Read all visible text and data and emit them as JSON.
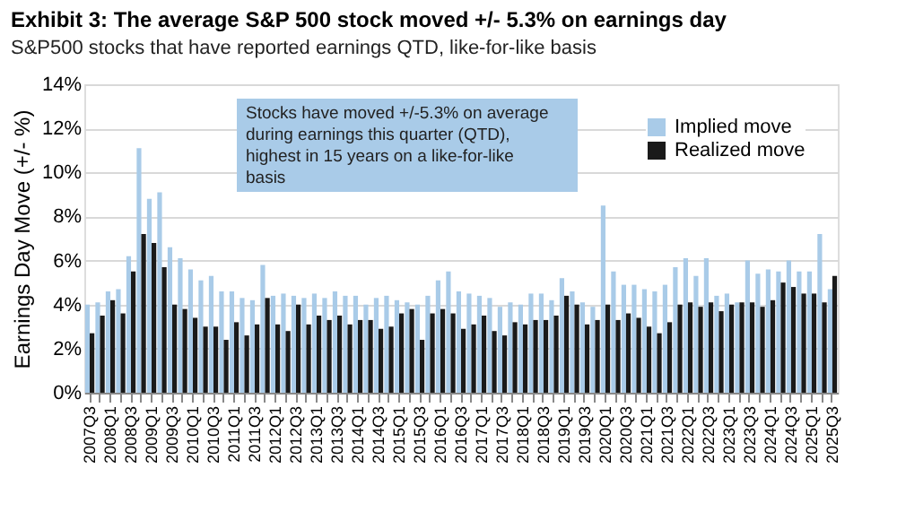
{
  "chart_data": {
    "type": "bar",
    "title": "Exhibit 3: The average S&P 500 stock moved +/- 5.3% on earnings day",
    "subtitle": "S&P500 stocks that have reported earnings QTD, like-for-like basis",
    "ylabel": "Earnings Day Move (+/- %)",
    "categories": [
      "2007Q3",
      null,
      "2008Q1",
      null,
      "2008Q3",
      null,
      "2009Q1",
      null,
      "2009Q3",
      null,
      "2010Q1",
      null,
      "2010Q3",
      null,
      "2011Q1",
      null,
      "2011Q3",
      null,
      "2012Q1",
      null,
      "2012Q3",
      null,
      "2013Q1",
      null,
      "2013Q3",
      null,
      "2014Q1",
      null,
      "2014Q3",
      null,
      "2015Q1",
      null,
      "2015Q3",
      null,
      "2016Q1",
      null,
      "2016Q3",
      null,
      "2017Q1",
      null,
      "2017Q3",
      null,
      "2018Q1",
      null,
      "2018Q3",
      null,
      "2019Q1",
      null,
      "2019Q3",
      null,
      "2020Q1",
      null,
      "2020Q3",
      null,
      "2021Q1",
      null,
      "2021Q3",
      null,
      "2022Q1",
      null,
      "2022Q3",
      null,
      "2023Q1",
      null,
      "2023Q3",
      null,
      "2024Q1",
      null,
      "2024Q3",
      null,
      "2025Q1",
      null,
      "2025Q3"
    ],
    "series": [
      {
        "name": "Implied move",
        "color": "#a9cbe8",
        "values": [
          4.0,
          4.1,
          4.6,
          4.7,
          6.2,
          11.1,
          8.8,
          9.1,
          6.6,
          6.1,
          5.6,
          5.1,
          5.3,
          4.6,
          4.6,
          4.3,
          4.2,
          5.8,
          4.4,
          4.5,
          4.4,
          4.3,
          4.5,
          4.3,
          4.6,
          4.4,
          4.4,
          4.0,
          4.3,
          4.4,
          4.2,
          4.1,
          4.0,
          4.4,
          5.1,
          5.5,
          4.6,
          4.5,
          4.4,
          4.3,
          3.9,
          4.1,
          4.0,
          4.5,
          4.5,
          4.2,
          5.2,
          4.6,
          4.1,
          3.9,
          8.5,
          5.5,
          4.9,
          4.9,
          4.7,
          4.6,
          4.9,
          5.7,
          6.1,
          5.3,
          6.1,
          4.4,
          4.5,
          4.1,
          6.0,
          5.4,
          5.6,
          5.5,
          6.0,
          5.5,
          5.5,
          7.2,
          4.7
        ]
      },
      {
        "name": "Realized move",
        "color": "#1a1a1a",
        "values": [
          2.7,
          3.5,
          4.2,
          3.6,
          5.5,
          7.2,
          6.8,
          5.7,
          4.0,
          3.8,
          3.4,
          3.0,
          3.0,
          2.4,
          3.2,
          2.6,
          3.1,
          4.3,
          3.1,
          2.8,
          4.0,
          3.1,
          3.5,
          3.3,
          3.5,
          3.1,
          3.3,
          3.3,
          2.9,
          3.0,
          3.6,
          3.8,
          2.4,
          3.6,
          3.8,
          3.6,
          2.9,
          3.1,
          3.5,
          2.8,
          2.6,
          3.2,
          3.1,
          3.3,
          3.3,
          3.5,
          4.4,
          4.0,
          3.1,
          3.3,
          4.0,
          3.3,
          3.6,
          3.4,
          3.0,
          2.7,
          3.2,
          4.0,
          4.1,
          3.9,
          4.1,
          3.7,
          4.0,
          4.1,
          4.1,
          3.9,
          4.2,
          5.0,
          4.8,
          4.5,
          4.5,
          4.1,
          5.3
        ]
      }
    ],
    "ylim": [
      0,
      14
    ],
    "yticks": [
      {
        "value": 0,
        "label": "0%"
      },
      {
        "value": 2,
        "label": "2%"
      },
      {
        "value": 4,
        "label": "4%"
      },
      {
        "value": 6,
        "label": "6%"
      },
      {
        "value": 8,
        "label": "8%"
      },
      {
        "value": 10,
        "label": "10%"
      },
      {
        "value": 12,
        "label": "12%"
      },
      {
        "value": 14,
        "label": "14%"
      }
    ],
    "grid": "y",
    "legend": "top right",
    "annotations": [
      "Stocks have moved +/-5.3% on average during earnings this quarter (QTD), highest in 15 years on a like-for-like basis"
    ]
  }
}
